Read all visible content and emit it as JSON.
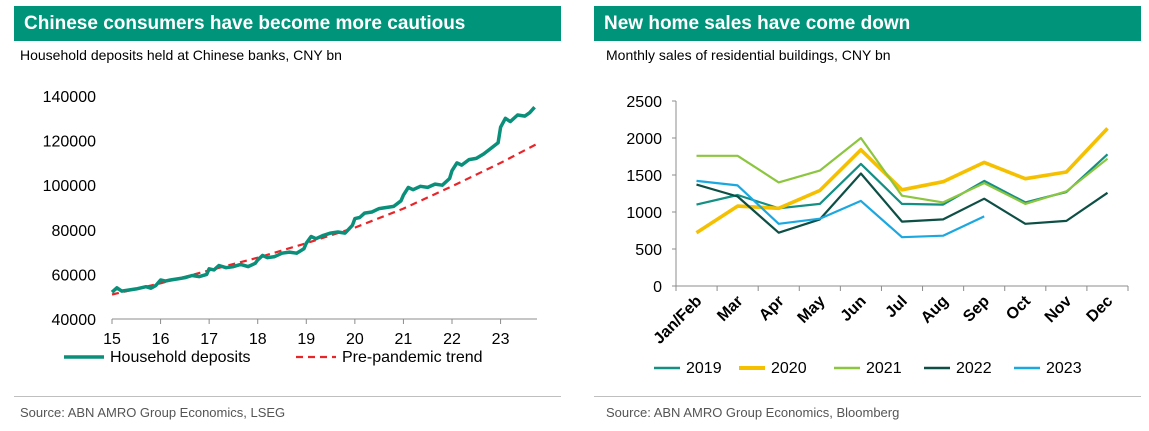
{
  "left": {
    "title": "Chinese consumers have become more cautious",
    "subtitle": "Household deposits held at Chinese banks, CNY bn",
    "source": "Source: ABN AMRO Group Economics, LSEG"
  },
  "right": {
    "title": "New home sales have come down",
    "subtitle": "Monthly sales of residential buildings, CNY bn",
    "source": "Source: ABN AMRO Group Economics, Bloomberg"
  },
  "colors": {
    "accent": "#00957a",
    "deposits": "#0a8f7b",
    "trend": "#e8262a",
    "s2019": "#138f84",
    "s2020": "#f5c000",
    "s2021": "#8cc63f",
    "s2022": "#0d4f44",
    "s2023": "#1ba8e0"
  },
  "chart_data": [
    {
      "type": "line",
      "xlim": [
        15,
        23.75
      ],
      "ylim": [
        40000,
        140000
      ],
      "xticks": [
        "15",
        "16",
        "17",
        "18",
        "19",
        "20",
        "21",
        "22",
        "23"
      ],
      "yticks": [
        "40000",
        "60000",
        "80000",
        "100000",
        "120000",
        "140000"
      ],
      "grid": false,
      "legend": "bottom",
      "series": [
        {
          "name": "Household deposits",
          "x": [
            15.0,
            15.1,
            15.2,
            15.35,
            15.5,
            15.7,
            15.8,
            15.9,
            16.0,
            16.1,
            16.2,
            16.35,
            16.5,
            16.65,
            16.8,
            16.95,
            17.0,
            17.1,
            17.2,
            17.35,
            17.5,
            17.65,
            17.8,
            17.95,
            18.0,
            18.1,
            18.2,
            18.35,
            18.5,
            18.65,
            18.8,
            18.95,
            19.0,
            19.1,
            19.2,
            19.35,
            19.5,
            19.65,
            19.8,
            19.95,
            20.0,
            20.1,
            20.2,
            20.35,
            20.5,
            20.65,
            20.8,
            20.95,
            21.0,
            21.1,
            21.2,
            21.35,
            21.5,
            21.65,
            21.8,
            21.95,
            22.0,
            22.1,
            22.2,
            22.35,
            22.5,
            22.65,
            22.8,
            22.95,
            23.0,
            23.1,
            23.2,
            23.35,
            23.5,
            23.6,
            23.7
          ],
          "values": [
            52000,
            54000,
            52500,
            53000,
            53500,
            54500,
            53800,
            55000,
            57500,
            57000,
            57500,
            58000,
            58500,
            59500,
            59000,
            60000,
            62500,
            62000,
            64000,
            63000,
            63500,
            64500,
            63500,
            65000,
            66500,
            68500,
            67500,
            68000,
            69500,
            70000,
            69500,
            71500,
            74000,
            77000,
            76000,
            77500,
            78500,
            79000,
            78500,
            82000,
            85000,
            85500,
            87500,
            88000,
            89500,
            90000,
            90500,
            93000,
            95500,
            99000,
            98000,
            99500,
            99000,
            100500,
            100000,
            103000,
            106500,
            110000,
            109000,
            111500,
            112000,
            114000,
            116500,
            119000,
            126000,
            130000,
            128500,
            131500,
            131000,
            132500,
            135000
          ]
        },
        {
          "name": "Pre-pandemic trend",
          "x": [
            15.0,
            16.0,
            17.0,
            18.0,
            19.0,
            20.0,
            21.0,
            22.0,
            23.0,
            23.75
          ],
          "values": [
            51000,
            56000,
            61800,
            67500,
            74000,
            81000,
            89500,
            99500,
            110000,
            118500
          ]
        }
      ]
    },
    {
      "type": "line",
      "categories": [
        "Jan/Feb",
        "Mar",
        "Apr",
        "May",
        "Jun",
        "Jul",
        "Aug",
        "Sep",
        "Oct",
        "Nov",
        "Dec"
      ],
      "ylim": [
        0,
        2500
      ],
      "yticks": [
        "0",
        "500",
        "1000",
        "1500",
        "2000",
        "2500"
      ],
      "grid": false,
      "legend": "bottom",
      "series": [
        {
          "name": "2019",
          "values": [
            1100,
            1230,
            1050,
            1110,
            1650,
            1110,
            1100,
            1420,
            1130,
            1270,
            1780
          ]
        },
        {
          "name": "2020",
          "values": [
            720,
            1080,
            1050,
            1290,
            1840,
            1300,
            1410,
            1670,
            1450,
            1540,
            2130
          ]
        },
        {
          "name": "2021",
          "values": [
            1760,
            1760,
            1400,
            1560,
            2000,
            1220,
            1130,
            1390,
            1110,
            1280,
            1720
          ]
        },
        {
          "name": "2022",
          "values": [
            1370,
            1210,
            720,
            900,
            1520,
            870,
            900,
            1180,
            840,
            880,
            1260
          ]
        },
        {
          "name": "2023",
          "values": [
            1420,
            1360,
            840,
            910,
            1150,
            660,
            680,
            940,
            null,
            null,
            null
          ]
        }
      ]
    }
  ]
}
